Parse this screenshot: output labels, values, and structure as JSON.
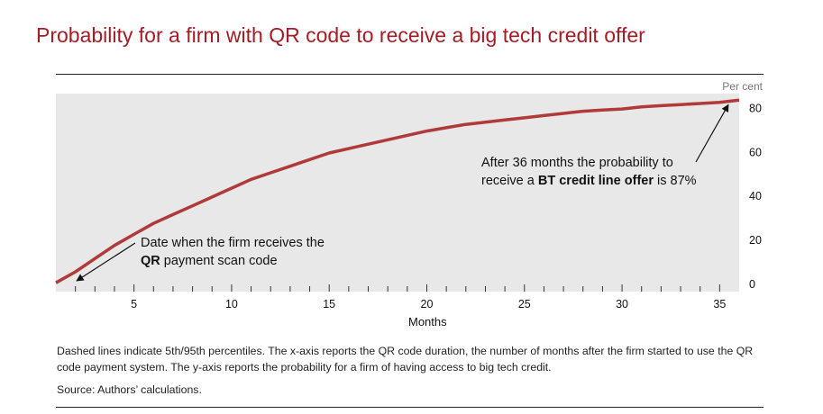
{
  "title": "Probability for a firm with QR code to receive a big tech credit offer",
  "footnote": "Dashed lines indicate 5th/95th percentiles. The x-axis reports the QR code duration, the number of months after the firm started to use the QR code payment system. The y-axis reports the probability for a firm of having access to big tech credit.",
  "source": "Source: Authors’ calculations.",
  "colors": {
    "title": "#a51d24",
    "line": "#b03a3a",
    "plot_bg": "#e8e8e8"
  },
  "chart_data": {
    "type": "line",
    "xlabel": "Months",
    "ylabel": "Per cent",
    "xlim": [
      1,
      36
    ],
    "ylim": [
      0,
      90
    ],
    "x_ticks": [
      5,
      10,
      15,
      20,
      25,
      30,
      35
    ],
    "y_ticks": [
      0,
      20,
      40,
      60,
      80
    ],
    "series": [
      {
        "x": [
          1,
          2,
          3,
          4,
          5,
          6,
          7,
          8,
          9,
          10,
          11,
          12,
          13,
          14,
          15,
          16,
          17,
          18,
          19,
          20,
          21,
          22,
          23,
          24,
          25,
          26,
          27,
          28,
          29,
          30,
          31,
          32,
          33,
          34,
          35,
          36
        ],
        "values": [
          4,
          9,
          15,
          21,
          26,
          31,
          35,
          39,
          43,
          47,
          51,
          54,
          57,
          60,
          63,
          65,
          67,
          69,
          71,
          73,
          74.5,
          76,
          77,
          78,
          79,
          80,
          81,
          82,
          82.5,
          83,
          84,
          84.5,
          85,
          85.5,
          86,
          87
        ]
      }
    ],
    "annotations": [
      {
        "line1": "After 36 months the probability to",
        "pre": "receive a ",
        "bold": "BT credit line offer",
        "post": " is 87%"
      },
      {
        "line1": "Date when the firm receives the",
        "bold": "QR",
        "post": " payment scan code"
      }
    ]
  }
}
